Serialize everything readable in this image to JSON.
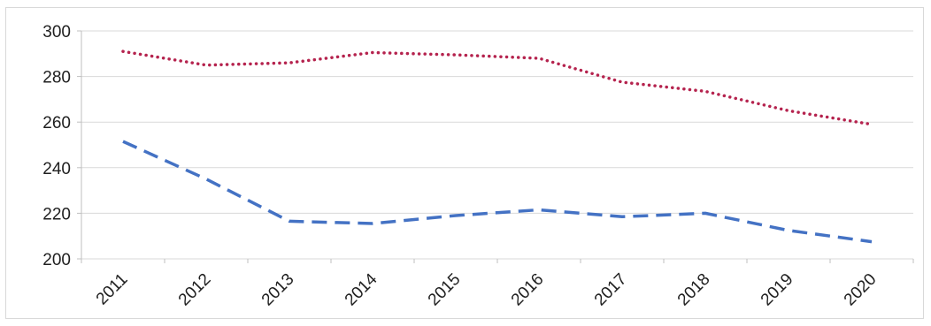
{
  "chart_data": {
    "type": "line",
    "title": "",
    "xlabel": "",
    "ylabel": "",
    "categories": [
      "2011",
      "2012",
      "2013",
      "2014",
      "2015",
      "2016",
      "2017",
      "2018",
      "2019",
      "2020"
    ],
    "ylim": [
      200,
      300
    ],
    "yticks": [
      "200",
      "220",
      "240",
      "260",
      "280",
      "300"
    ],
    "grid": true,
    "legend": "none",
    "series": [
      {
        "values": [
          291,
          285,
          286,
          290.5,
          289.5,
          288,
          277.5,
          273.5,
          265,
          259
        ],
        "color": "#b5234e",
        "style": "dotted"
      },
      {
        "values": [
          251.5,
          235,
          216.5,
          215.5,
          219,
          221.5,
          218.5,
          220,
          212.5,
          207.5
        ],
        "color": "#4472c4",
        "style": "dashed"
      }
    ]
  }
}
